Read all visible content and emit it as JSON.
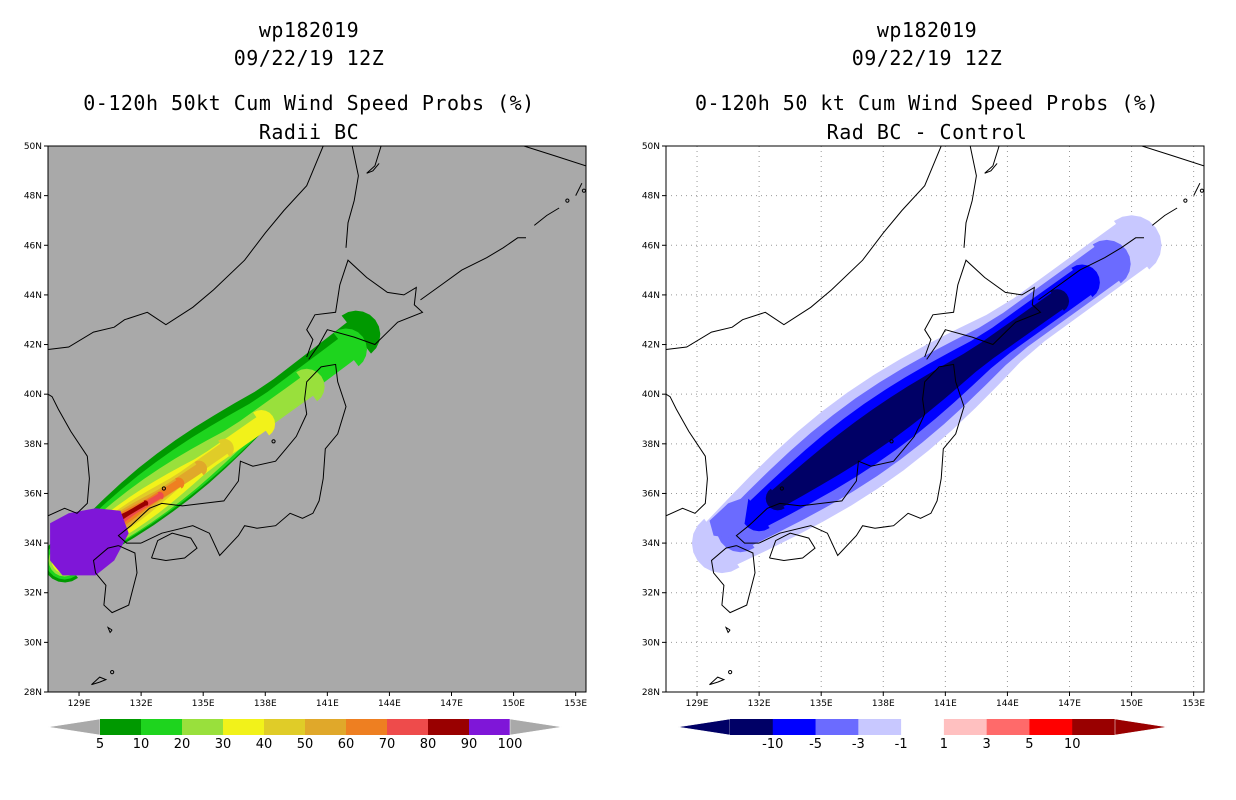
{
  "left_panel": {
    "title_storm": "wp182019",
    "title_date": "09/22/19 12Z",
    "title_product": "0-120h 50kt Cum Wind Speed Probs (%)",
    "title_subtitle": "Radii BC",
    "background_color": "#a9a9a9",
    "colorbar": {
      "colors": [
        "#009900",
        "#1ed41e",
        "#99e03c",
        "#f2f21a",
        "#e0cc28",
        "#e0a82a",
        "#ee7f21",
        "#ee4b4b",
        "#990000",
        "#7f16d8"
      ],
      "labels": [
        "5",
        "10",
        "20",
        "30",
        "40",
        "50",
        "60",
        "70",
        "80",
        "90",
        "100"
      ]
    }
  },
  "right_panel": {
    "title_storm": "wp182019",
    "title_date": "09/22/19 12Z",
    "title_product": "0-120h 50 kt Cum Wind Speed Probs (%)",
    "title_subtitle": "Rad BC - Control",
    "background_color": "#ffffff",
    "colorbar": {
      "colors": [
        "#000066",
        "#0000ff",
        "#6b6bff",
        "#c8c8ff",
        "#ffffff",
        "#ffc0c0",
        "#ff6a6a",
        "#ff0000",
        "#990000"
      ],
      "labels": [
        "-10",
        "-5",
        "-3",
        "-1",
        "1",
        "3",
        "5",
        "10"
      ]
    }
  },
  "map": {
    "lat_labels": [
      "28N",
      "30N",
      "32N",
      "34N",
      "36N",
      "38N",
      "40N",
      "42N",
      "44N",
      "46N",
      "48N",
      "50N"
    ],
    "lon_labels": [
      "129E",
      "132E",
      "135E",
      "138E",
      "141E",
      "144E",
      "147E",
      "150E",
      "153E"
    ],
    "lat_range": [
      28,
      50
    ],
    "lon_range": [
      127.5,
      153.5
    ]
  }
}
